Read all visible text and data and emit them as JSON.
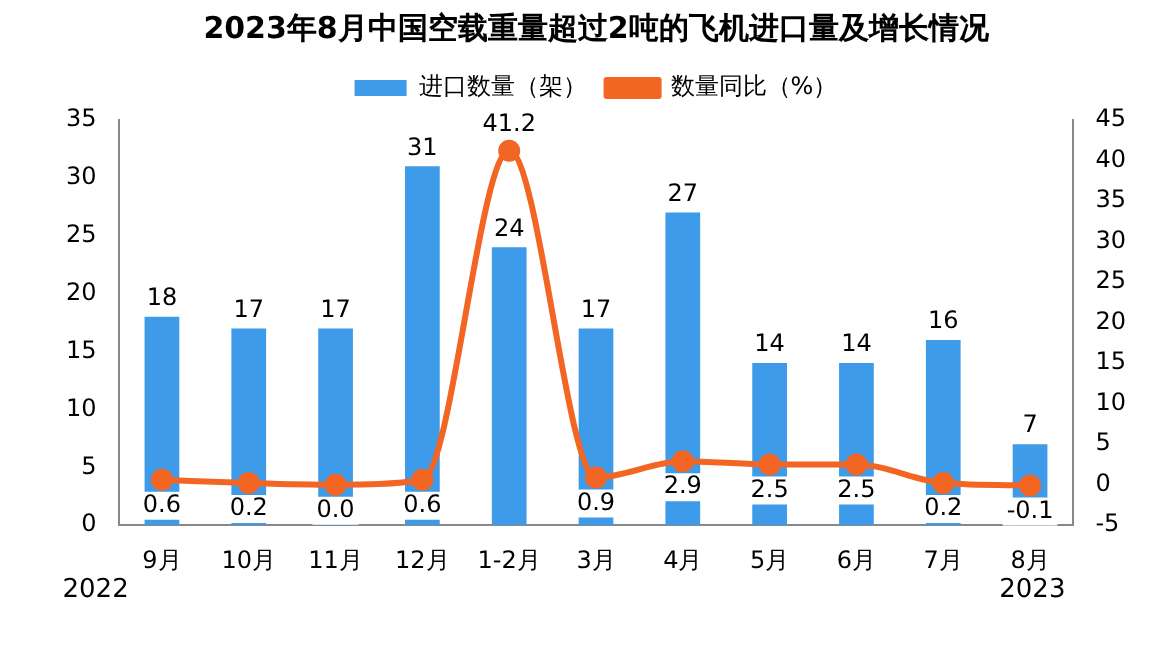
{
  "chart_data": {
    "type": "bar",
    "title": "2023年8月中国空载重量超过2吨的飞机进口量及增长情况",
    "categories": [
      "9月",
      "10月",
      "11月",
      "12月",
      "1-2月",
      "3月",
      "4月",
      "5月",
      "6月",
      "7月",
      "8月"
    ],
    "series": [
      {
        "name": "进口数量（架）",
        "color": "#3d9be9",
        "values": [
          18,
          17,
          17,
          31,
          24,
          17,
          27,
          14,
          14,
          16,
          7
        ]
      },
      {
        "name": "数量同比（%）",
        "type": "line",
        "axis": "y2",
        "color": "#f26522",
        "values": [
          0.6,
          0.2,
          0.0,
          0.6,
          41.2,
          0.9,
          2.9,
          2.5,
          2.5,
          0.2,
          -0.1
        ],
        "value_labels": [
          "0.6",
          "0.2",
          "0.0",
          "0.6",
          "41.2",
          "0.9",
          "2.9",
          "2.5",
          "2.5",
          "0.2",
          "-0.1"
        ]
      }
    ],
    "ylim": [
      0,
      35
    ],
    "yticks": [
      0,
      5,
      10,
      15,
      20,
      25,
      30,
      35
    ],
    "y2lim": [
      -5,
      45
    ],
    "y2ticks": [
      -5,
      0,
      5,
      10,
      15,
      20,
      25,
      30,
      35,
      40,
      45
    ],
    "annotations": [
      "2022",
      "2023"
    ],
    "data_labels": true,
    "legend": "top",
    "marker": "circle",
    "line_style": "solid",
    "grid": false
  }
}
